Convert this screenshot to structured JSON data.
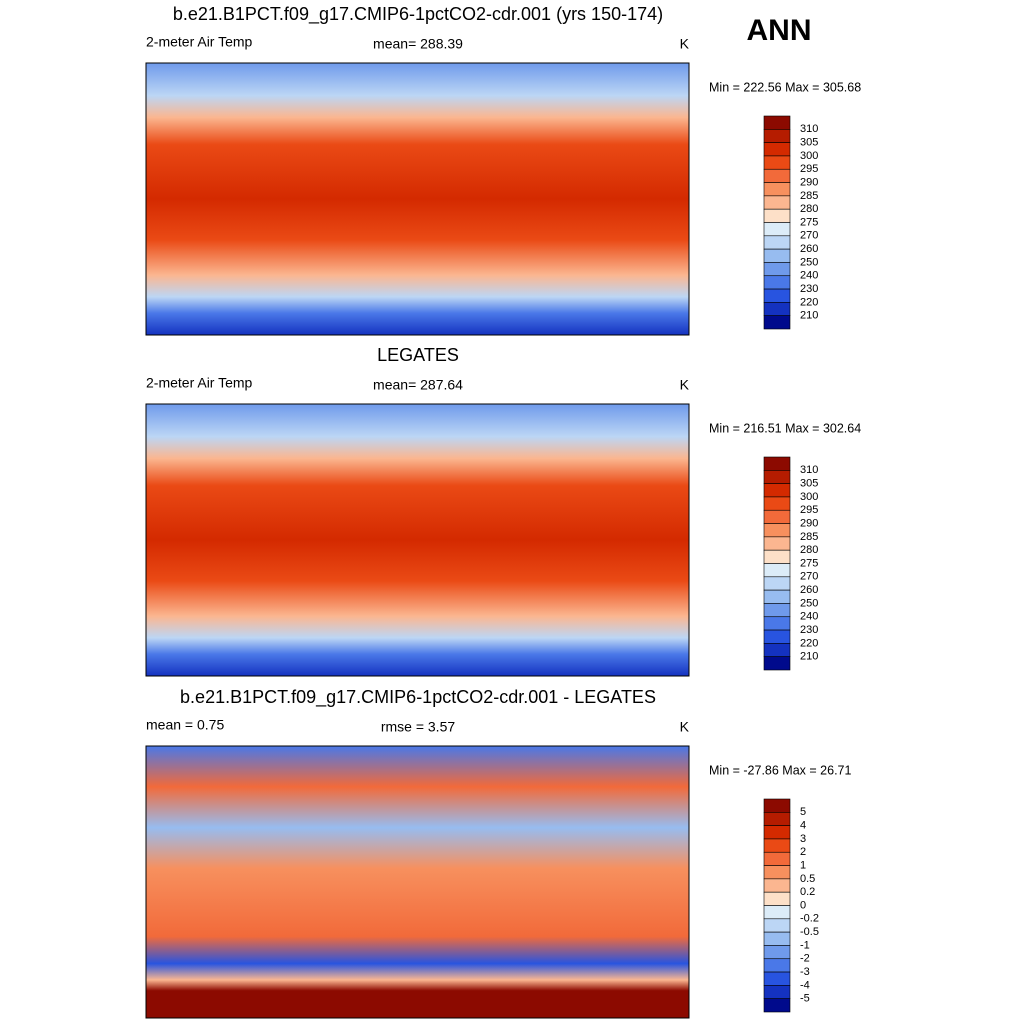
{
  "label": "ANN",
  "panels": [
    {
      "title": "b.e21.B1PCT.f09_g17.CMIP6-1pctCO2-cdr.001 (yrs 150-174)",
      "left": "2-meter Air Temp",
      "center": "mean= 288.39",
      "right": "K",
      "range": "Min = 222.56 Max = 305.68",
      "colorbar": {
        "labels": [
          310,
          305,
          300,
          295,
          290,
          285,
          280,
          275,
          270,
          260,
          250,
          240,
          230,
          220,
          210
        ],
        "colors": [
          "#8c0a00",
          "#b51c00",
          "#d42a00",
          "#ea4a15",
          "#f26a3a",
          "#f7905e",
          "#fbb690",
          "#fde0c8",
          "#dcecf8",
          "#bcd6f5",
          "#97bcf0",
          "#6f9aeb",
          "#4a78e8",
          "#2854e0",
          "#1432c0",
          "#000a8c"
        ]
      }
    },
    {
      "title": "LEGATES",
      "left": "2-meter Air Temp",
      "center": "mean= 287.64",
      "right": "K",
      "range": "Min = 216.51 Max = 302.64",
      "colorbar": {
        "labels": [
          310,
          305,
          300,
          295,
          290,
          285,
          280,
          275,
          270,
          260,
          250,
          240,
          230,
          220,
          210
        ],
        "colors": [
          "#8c0a00",
          "#b51c00",
          "#d42a00",
          "#ea4a15",
          "#f26a3a",
          "#f7905e",
          "#fbb690",
          "#fde0c8",
          "#dcecf8",
          "#bcd6f5",
          "#97bcf0",
          "#6f9aeb",
          "#4a78e8",
          "#2854e0",
          "#1432c0",
          "#000a8c"
        ]
      }
    },
    {
      "title": "b.e21.B1PCT.f09_g17.CMIP6-1pctCO2-cdr.001 - LEGATES",
      "left": "mean =   0.75",
      "center": "rmse =   3.57",
      "right": "K",
      "range": "Min = -27.86 Max =  26.71",
      "colorbar": {
        "labels": [
          5,
          4,
          3,
          2,
          1,
          0.5,
          0.2,
          0,
          -0.2,
          -0.5,
          -1,
          -2,
          -3,
          -4,
          -5
        ],
        "colors": [
          "#8c0a00",
          "#b51c00",
          "#d42a00",
          "#ea4a15",
          "#f26a3a",
          "#f7905e",
          "#fbb690",
          "#fde0c8",
          "#dcecf8",
          "#bcd6f5",
          "#97bcf0",
          "#6f9aeb",
          "#4a78e8",
          "#2854e0",
          "#1432c0",
          "#000a8c"
        ]
      }
    }
  ]
}
